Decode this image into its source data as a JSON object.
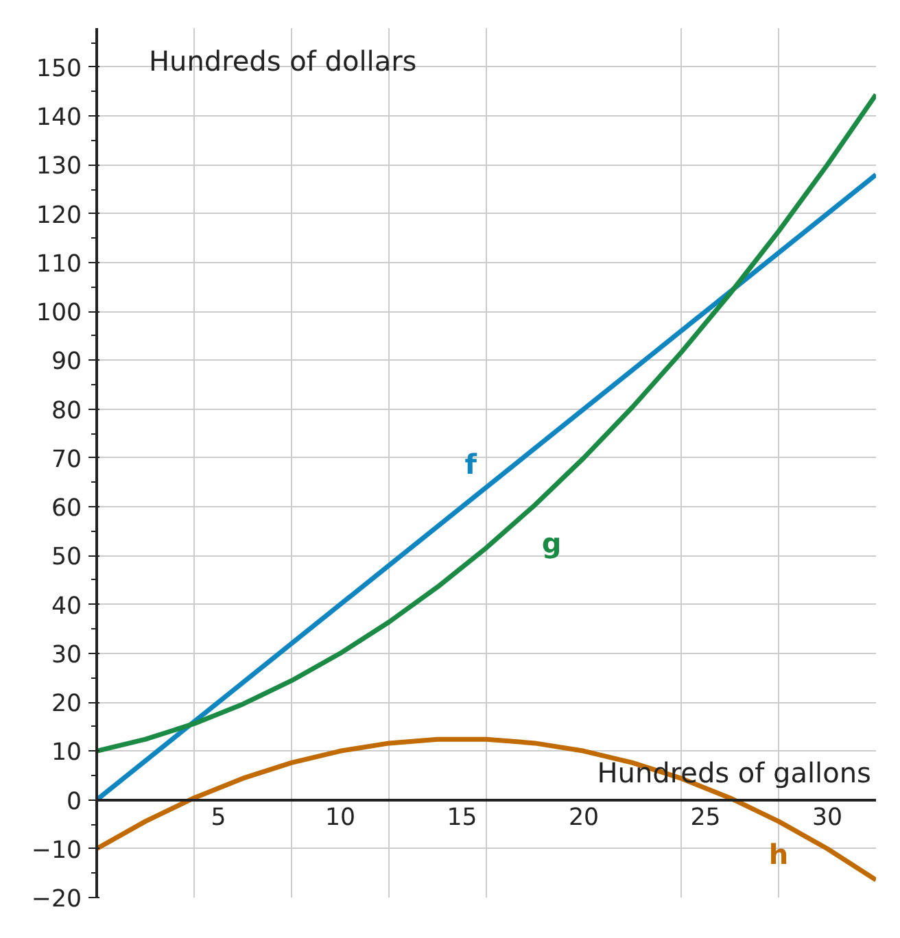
{
  "chart_data": {
    "type": "line",
    "xlabel": "Hundreds of gallons",
    "ylabel": "Hundreds of dollars",
    "xlim": [
      0,
      32
    ],
    "ylim": [
      -20,
      158
    ],
    "xticks": [
      {
        "value": 4,
        "label": null
      },
      5,
      {
        "value": 8,
        "label": null
      },
      10,
      {
        "value": 12,
        "label": null
      },
      15,
      {
        "value": 16,
        "label": null
      },
      20,
      {
        "value": 24,
        "label": null
      },
      25,
      {
        "value": 28,
        "label": null
      },
      30
    ],
    "yticks": [
      {
        "value": -20,
        "label": "−20"
      },
      {
        "value": -10,
        "label": "−10"
      },
      0,
      10,
      20,
      30,
      40,
      50,
      60,
      70,
      80,
      90,
      100,
      110,
      120,
      130,
      140,
      150
    ],
    "grid": true,
    "line_style": "solid",
    "marker": "none",
    "series": [
      {
        "name": "f",
        "color": "#0f86bf",
        "x": [
          0,
          32
        ],
        "values": [
          0,
          128
        ]
      },
      {
        "name": "g",
        "color": "#1b8a45",
        "x": [
          0,
          2,
          4,
          6,
          8,
          10,
          12,
          14,
          16,
          18,
          20,
          22,
          24,
          26,
          28,
          30,
          32
        ],
        "values": [
          10,
          12.4,
          15.6,
          19.6,
          24.4,
          30,
          36.4,
          43.6,
          51.6,
          60.4,
          70,
          80.4,
          91.6,
          103.6,
          116.4,
          130,
          144.4
        ]
      },
      {
        "name": "h",
        "color": "#c06a00",
        "x": [
          0,
          2,
          4,
          6,
          8,
          10,
          12,
          14,
          16,
          18,
          20,
          22,
          24,
          26,
          28,
          30,
          32
        ],
        "values": [
          -10,
          -4.4,
          0.4,
          4.4,
          7.6,
          10,
          11.6,
          12.4,
          12.4,
          11.6,
          10,
          7.6,
          4.4,
          0.4,
          -4.4,
          -10,
          -16.4
        ]
      }
    ]
  }
}
